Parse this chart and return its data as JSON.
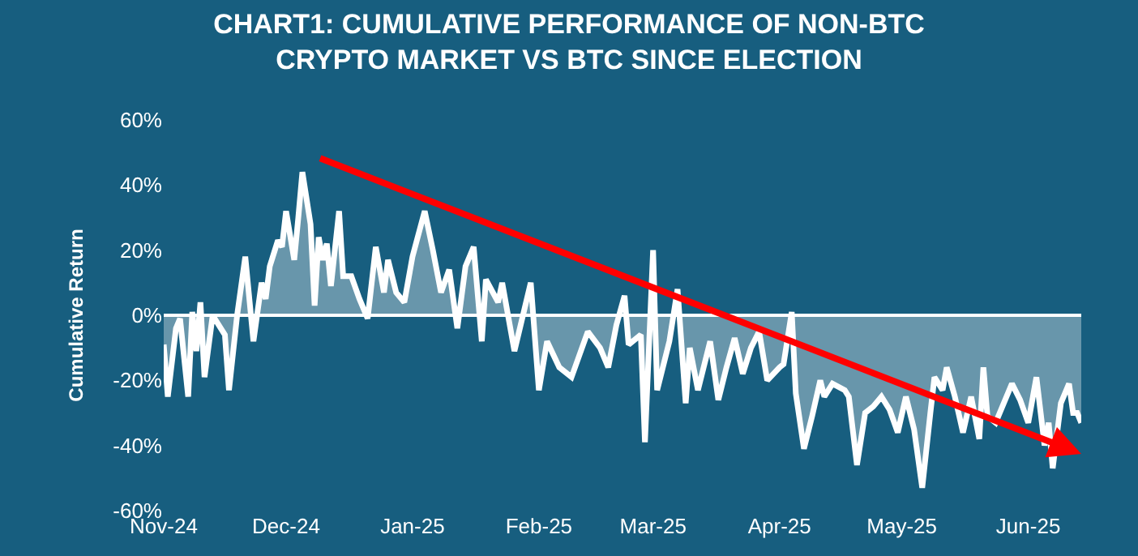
{
  "chart_data": {
    "type": "area",
    "title": "CHART1: CUMULATIVE PERFORMANCE OF NON-BTC\nCRYPTO MARKET VS BTC SINCE ELECTION",
    "ylabel": "Cumulative Return",
    "xlim": [
      "2024-11-05",
      "2025-06-18"
    ],
    "xticks": [
      {
        "value": "2024-11-05",
        "label": "Nov-24"
      },
      {
        "value": "2024-12-05",
        "label": "Dec-24"
      },
      {
        "value": "2025-01-05",
        "label": "Jan-25"
      },
      {
        "value": "2025-02-05",
        "label": "Feb-25"
      },
      {
        "value": "2025-03-05",
        "label": "Mar-25"
      },
      {
        "value": "2025-04-05",
        "label": "Apr-25"
      },
      {
        "value": "2025-05-05",
        "label": "May-25"
      },
      {
        "value": "2025-06-05",
        "label": "Jun-25"
      }
    ],
    "ylim": [
      -60,
      60
    ],
    "yticks": [
      {
        "value": -60,
        "label": "-60%"
      },
      {
        "value": -40,
        "label": "-40%"
      },
      {
        "value": -20,
        "label": "-20%"
      },
      {
        "value": 0,
        "label": "0%"
      },
      {
        "value": 20,
        "label": "20%"
      },
      {
        "value": 40,
        "label": "40%"
      },
      {
        "value": 60,
        "label": "60%"
      }
    ],
    "grid": false,
    "ref_lines": [
      {
        "axis": "y",
        "value": 0,
        "color": "#ffffff"
      }
    ],
    "x": [
      "2024-11-05",
      "2024-11-06",
      "2024-11-08",
      "2024-11-09",
      "2024-11-11",
      "2024-11-12",
      "2024-11-13",
      "2024-11-14",
      "2024-11-15",
      "2024-11-17",
      "2024-11-19",
      "2024-11-20",
      "2024-11-21",
      "2024-11-23",
      "2024-11-25",
      "2024-11-27",
      "2024-11-29",
      "2024-11-30",
      "2024-12-01",
      "2024-12-03",
      "2024-12-04",
      "2024-12-05",
      "2024-12-07",
      "2024-12-08",
      "2024-12-09",
      "2024-12-11",
      "2024-12-12",
      "2024-12-13",
      "2024-12-14",
      "2024-12-15",
      "2024-12-16",
      "2024-12-18",
      "2024-12-19",
      "2024-12-21",
      "2024-12-23",
      "2024-12-25",
      "2024-12-27",
      "2024-12-29",
      "2024-12-30",
      "2025-01-01",
      "2025-01-03",
      "2025-01-05",
      "2025-01-08",
      "2025-01-10",
      "2025-01-12",
      "2025-01-14",
      "2025-01-16",
      "2025-01-18",
      "2025-01-20",
      "2025-01-22",
      "2025-01-23",
      "2025-01-26",
      "2025-01-27",
      "2025-01-30",
      "2025-02-03",
      "2025-02-05",
      "2025-02-07",
      "2025-02-10",
      "2025-02-13",
      "2025-02-17",
      "2025-02-20",
      "2025-02-22",
      "2025-02-24",
      "2025-02-26",
      "2025-02-27",
      "2025-03-02",
      "2025-03-03",
      "2025-03-05",
      "2025-03-06",
      "2025-03-09",
      "2025-03-11",
      "2025-03-13",
      "2025-03-14",
      "2025-03-16",
      "2025-03-19",
      "2025-03-21",
      "2025-03-23",
      "2025-03-25",
      "2025-03-27",
      "2025-03-29",
      "2025-03-31",
      "2025-04-02",
      "2025-04-05",
      "2025-04-06",
      "2025-04-08",
      "2025-04-09",
      "2025-04-11",
      "2025-04-13",
      "2025-04-15",
      "2025-04-16",
      "2025-04-18",
      "2025-04-21",
      "2025-04-22",
      "2025-04-24",
      "2025-04-26",
      "2025-04-28",
      "2025-04-30",
      "2025-05-02",
      "2025-05-04",
      "2025-05-06",
      "2025-05-08",
      "2025-05-10",
      "2025-05-12",
      "2025-05-13",
      "2025-05-15",
      "2025-05-16",
      "2025-05-18",
      "2025-05-20",
      "2025-05-22",
      "2025-05-24",
      "2025-05-25",
      "2025-05-26",
      "2025-05-28",
      "2025-06-01",
      "2025-06-03",
      "2025-06-05",
      "2025-06-07",
      "2025-06-09",
      "2025-06-10",
      "2025-06-11",
      "2025-06-13",
      "2025-06-15",
      "2025-06-16",
      "2025-06-17",
      "2025-06-18"
    ],
    "series": [
      {
        "color": "#ffffff",
        "values": [
          -9,
          -25,
          -4,
          -1,
          -25,
          1,
          -11,
          4,
          -19,
          0,
          -4,
          -6,
          -23,
          0,
          18,
          -8,
          10,
          5,
          15,
          23,
          21,
          32,
          17,
          30,
          44,
          28,
          3,
          24,
          17,
          22,
          9,
          32,
          12,
          12,
          5,
          -1,
          21,
          7,
          17,
          7,
          4,
          18,
          32,
          20,
          7,
          14,
          -4,
          15,
          21,
          -8,
          11,
          4,
          10,
          -11,
          10,
          -23,
          -8,
          -16,
          -19,
          -5,
          -10,
          -16,
          -3,
          6,
          -9,
          -6,
          -39,
          20,
          -23,
          -8,
          8,
          -27,
          -10,
          -23,
          -8,
          -26,
          -16,
          -7,
          -18,
          -10,
          -5,
          -20,
          -16,
          -15,
          1,
          -24,
          -41,
          -31,
          -20,
          -25,
          -21,
          -23,
          -25,
          -46,
          -30,
          -28,
          -25,
          -29,
          -36,
          -25,
          -35,
          -53,
          -30,
          -19,
          -23,
          -16,
          -25,
          -36,
          -25,
          -38,
          -16,
          -31,
          -33,
          -21,
          -26,
          -33,
          -19,
          -40,
          -33,
          -47,
          -27,
          -21,
          -30,
          -30,
          -33
        ]
      }
    ]
  }
}
